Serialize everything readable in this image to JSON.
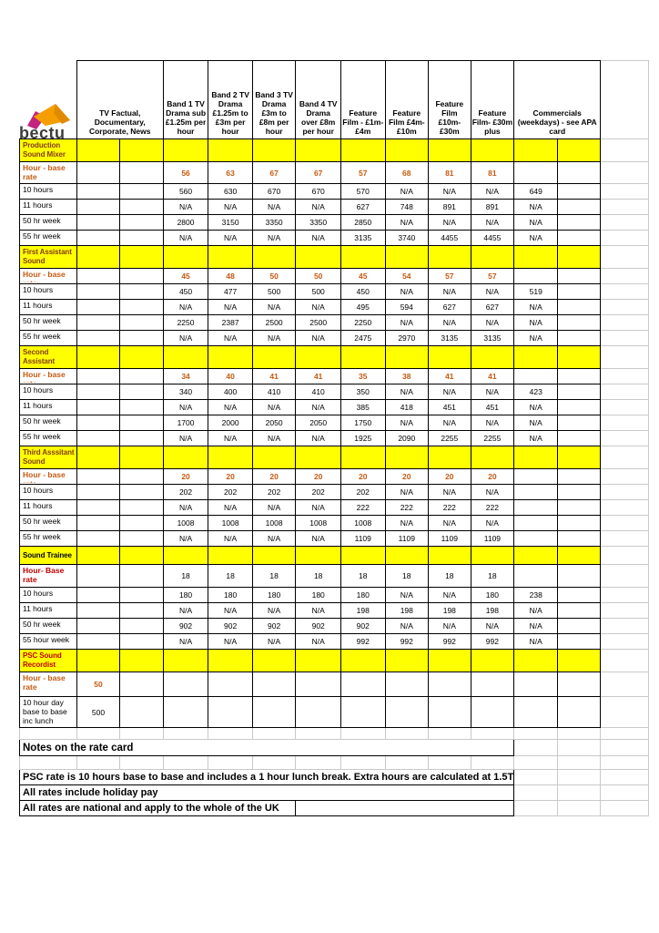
{
  "colors": {
    "yellow": "#FFFF00",
    "orange": "#C55A11",
    "red": "#C00000",
    "maroon": "#823B0B",
    "grid": "#C9C9C9",
    "logo_magenta": "#C2237E",
    "logo_orange": "#F59E00",
    "logo_amber": "#E08A00",
    "logo_dark": "#3C3C3B"
  },
  "logo": {
    "text": "bectu"
  },
  "header": {
    "tv_factual": "TV Factual, Documentary, Corporate, News",
    "columns": [
      "Band 1 TV Drama sub £1.25m per hour",
      "Band 2 TV Drama £1.25m to £3m per hour",
      "Band 3 TV Drama £3m to £8m per hour",
      "Band 4 TV Drama over £8m per hour",
      "Feature Film - £1m-£4m",
      "Feature Film £4m-£10m",
      "Feature Film £10m-£30m",
      "Feature Film- £30m plus"
    ],
    "commercials": "Commercials (weekdays) - see APA card"
  },
  "sections": [
    {
      "title": "Production Sound Mixer",
      "title_color": "maroon",
      "rows": [
        {
          "label": "Hour - base rate",
          "label_color": "orange",
          "value_color": "orange",
          "values": [
            "",
            "",
            "56",
            "63",
            "67",
            "67",
            "57",
            "68",
            "81",
            "81",
            ""
          ]
        },
        {
          "label": "10 hours",
          "values": [
            "",
            "",
            "560",
            "630",
            "670",
            "670",
            "570",
            "N/A",
            "N/A",
            "N/A",
            "649"
          ]
        },
        {
          "label": "11 hours",
          "values": [
            "",
            "",
            "N/A",
            "N/A",
            "N/A",
            "N/A",
            "627",
            "748",
            "891",
            "891",
            "N/A"
          ]
        },
        {
          "label": "50 hr week",
          "values": [
            "",
            "",
            "2800",
            "3150",
            "3350",
            "3350",
            "2850",
            "N/A",
            "N/A",
            "N/A",
            "N/A"
          ]
        },
        {
          "label": "55 hr week",
          "values": [
            "",
            "",
            "N/A",
            "N/A",
            "N/A",
            "N/A",
            "3135",
            "3740",
            "4455",
            "4455",
            "N/A"
          ]
        }
      ]
    },
    {
      "title": "First Assistant Sound",
      "title_color": "maroon",
      "rows": [
        {
          "label": "Hour - base rate",
          "label_color": "orange",
          "value_color": "orange",
          "values": [
            "",
            "",
            "45",
            "48",
            "50",
            "50",
            "45",
            "54",
            "57",
            "57",
            ""
          ]
        },
        {
          "label": "10 hours",
          "values": [
            "",
            "",
            "450",
            "477",
            "500",
            "500",
            "450",
            "N/A",
            "N/A",
            "N/A",
            "519"
          ]
        },
        {
          "label": "11 hours",
          "values": [
            "",
            "",
            "N/A",
            "N/A",
            "N/A",
            "N/A",
            "495",
            "594",
            "627",
            "627",
            "N/A"
          ]
        },
        {
          "label": "50 hr week",
          "values": [
            "",
            "",
            "2250",
            "2387",
            "2500",
            "2500",
            "2250",
            "N/A",
            "N/A",
            "N/A",
            "N/A"
          ]
        },
        {
          "label": "55 hr week",
          "values": [
            "",
            "",
            "N/A",
            "N/A",
            "N/A",
            "N/A",
            "2475",
            "2970",
            "3135",
            "3135",
            "N/A"
          ]
        }
      ]
    },
    {
      "title": "Second Assistant",
      "title_color": "maroon",
      "rows": [
        {
          "label": "Hour - base rate",
          "label_color": "orange",
          "value_color": "orange",
          "values": [
            "",
            "",
            "34",
            "40",
            "41",
            "41",
            "35",
            "38",
            "41",
            "41",
            ""
          ]
        },
        {
          "label": "10 hours",
          "values": [
            "",
            "",
            "340",
            "400",
            "410",
            "410",
            "350",
            "N/A",
            "N/A",
            "N/A",
            "423"
          ]
        },
        {
          "label": "11 hours",
          "values": [
            "",
            "",
            "N/A",
            "N/A",
            "N/A",
            "N/A",
            "385",
            "418",
            "451",
            "451",
            "N/A"
          ]
        },
        {
          "label": "50 hr week",
          "values": [
            "",
            "",
            "1700",
            "2000",
            "2050",
            "2050",
            "1750",
            "N/A",
            "N/A",
            "N/A",
            "N/A"
          ]
        },
        {
          "label": "55 hr week",
          "values": [
            "",
            "",
            "N/A",
            "N/A",
            "N/A",
            "N/A",
            "1925",
            "2090",
            "2255",
            "2255",
            "N/A"
          ]
        }
      ]
    },
    {
      "title": "Third Asssitant Sound",
      "title_color": "maroon",
      "rows": [
        {
          "label": "Hour - base rate",
          "label_color": "orange",
          "value_color": "orange",
          "values": [
            "",
            "",
            "20",
            "20",
            "20",
            "20",
            "20",
            "20",
            "20",
            "20",
            ""
          ]
        },
        {
          "label": "10 hours",
          "values": [
            "",
            "",
            "202",
            "202",
            "202",
            "202",
            "202",
            "N/A",
            "N/A",
            "N/A",
            ""
          ]
        },
        {
          "label": "11 hours",
          "values": [
            "",
            "",
            "N/A",
            "N/A",
            "N/A",
            "N/A",
            "222",
            "222",
            "222",
            "222",
            ""
          ]
        },
        {
          "label": "50 hr week",
          "values": [
            "",
            "",
            "1008",
            "1008",
            "1008",
            "1008",
            "1008",
            "N/A",
            "N/A",
            "N/A",
            ""
          ]
        },
        {
          "label": "55 hr week",
          "values": [
            "",
            "",
            "N/A",
            "N/A",
            "N/A",
            "N/A",
            "1109",
            "1109",
            "1109",
            "1109",
            ""
          ]
        }
      ]
    },
    {
      "title": "Sound Trainee",
      "title_color": "black",
      "rows": [
        {
          "label": "Hour- Base rate",
          "label_color": "red",
          "values": [
            "",
            "",
            "18",
            "18",
            "18",
            "18",
            "18",
            "18",
            "18",
            "18",
            ""
          ]
        },
        {
          "label": "10 hours",
          "values": [
            "",
            "",
            "180",
            "180",
            "180",
            "180",
            "180",
            "N/A",
            "N/A",
            "180",
            "238"
          ]
        },
        {
          "label": "11 hours",
          "values": [
            "",
            "",
            "N/A",
            "N/A",
            "N/A",
            "N/A",
            "198",
            "198",
            "198",
            "198",
            "N/A"
          ]
        },
        {
          "label": "50 hr week",
          "values": [
            "",
            "",
            "902",
            "902",
            "902",
            "902",
            "902",
            "N/A",
            "N/A",
            "N/A",
            "N/A"
          ]
        },
        {
          "label": "55 hour week",
          "values": [
            "",
            "",
            "N/A",
            "N/A",
            "N/A",
            "N/A",
            "992",
            "992",
            "992",
            "992",
            "N/A"
          ]
        }
      ]
    },
    {
      "title": "PSC Sound Recordist",
      "title_color": "red",
      "rows": [
        {
          "label": "Hour - base rate",
          "label_color": "orange",
          "value_color": "orange",
          "values": [
            "50",
            "",
            "",
            "",
            "",
            "",
            "",
            "",
            "",
            "",
            ""
          ]
        },
        {
          "label": "10 hour day base to base inc lunch",
          "values": [
            "500",
            "",
            "",
            "",
            "",
            "",
            "",
            "",
            "",
            "",
            ""
          ]
        }
      ]
    }
  ],
  "footer": {
    "notes_title": "Notes on the rate card",
    "notes": [
      "PSC rate is 10 hours base to base and includes a 1 hour lunch break. Extra hours are calculated at 1.5T",
      "All rates include holiday pay",
      "All rates are national and apply to the whole of the UK"
    ]
  }
}
